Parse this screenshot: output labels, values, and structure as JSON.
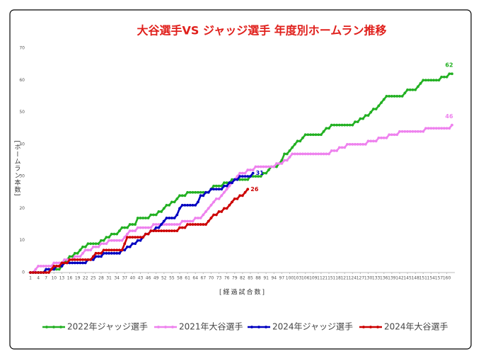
{
  "chart_data": {
    "type": "line",
    "title": "大谷選手VS ジャッジ選手 年度別ホームラン推移",
    "x_label": "[経過試合数]",
    "y_label": "[ホームラン本数]",
    "x": [
      1,
      2,
      3,
      4,
      5,
      6,
      7,
      8,
      9,
      10,
      11,
      12,
      13,
      14,
      15,
      16,
      17,
      18,
      19,
      20,
      21,
      22,
      23,
      24,
      25,
      26,
      27,
      28,
      29,
      30,
      31,
      32,
      33,
      34,
      35,
      36,
      37,
      38,
      39,
      40,
      41,
      42,
      43,
      44,
      45,
      46,
      47,
      48,
      49,
      50,
      51,
      52,
      53,
      54,
      55,
      56,
      57,
      58,
      59,
      60,
      61,
      62,
      63,
      64,
      65,
      66,
      67,
      68,
      69,
      70,
      71,
      72,
      73,
      74,
      75,
      76,
      77,
      78,
      79,
      80,
      81,
      82,
      83,
      84,
      85,
      86,
      87,
      88,
      89,
      90,
      91,
      92,
      93,
      94,
      95,
      96,
      97,
      98,
      99,
      100,
      101,
      102,
      103,
      104,
      105,
      106,
      107,
      108,
      109,
      110,
      111,
      112,
      113,
      114,
      115,
      116,
      117,
      118,
      119,
      120,
      121,
      122,
      123,
      124,
      125,
      126,
      127,
      128,
      129,
      130,
      131,
      132,
      133,
      134,
      135,
      136,
      137,
      138,
      139,
      140,
      141,
      142,
      143,
      144,
      145,
      146,
      147,
      148,
      149,
      150,
      151,
      152,
      153,
      154,
      155,
      156,
      157,
      158,
      159,
      160,
      161,
      162
    ],
    "series": [
      {
        "name": "2022年ジャッジ選手",
        "color": "#22b022",
        "values": [
          0,
          0,
          0,
          0,
          0,
          0,
          1,
          1,
          1,
          1,
          1,
          1,
          2,
          3,
          4,
          5,
          5,
          6,
          6,
          7,
          8,
          8,
          9,
          9,
          9,
          9,
          9,
          10,
          10,
          11,
          11,
          12,
          12,
          12,
          13,
          14,
          14,
          14,
          15,
          15,
          15,
          17,
          17,
          17,
          17,
          17,
          18,
          18,
          18,
          19,
          19,
          20,
          21,
          21,
          22,
          22,
          23,
          24,
          24,
          24,
          25,
          25,
          25,
          25,
          25,
          25,
          25,
          25,
          25,
          26,
          27,
          27,
          27,
          27,
          28,
          28,
          28,
          29,
          29,
          29,
          29,
          29,
          29,
          29,
          30,
          30,
          30,
          30,
          30,
          31,
          31,
          32,
          33,
          33,
          33,
          34,
          35,
          37,
          37,
          38,
          39,
          40,
          41,
          41,
          42,
          43,
          43,
          43,
          43,
          43,
          43,
          43,
          44,
          45,
          45,
          46,
          46,
          46,
          46,
          46,
          46,
          46,
          46,
          46,
          47,
          47,
          48,
          48,
          49,
          49,
          50,
          51,
          51,
          52,
          53,
          54,
          55,
          55,
          55,
          55,
          55,
          55,
          55,
          56,
          57,
          57,
          57,
          57,
          58,
          59,
          60,
          60,
          60,
          60,
          60,
          60,
          60,
          61,
          61,
          61,
          62,
          62
        ]
      },
      {
        "name": "2021年大谷選手",
        "color": "#ee82ee",
        "values": [
          0,
          0,
          1,
          2,
          2,
          2,
          2,
          2,
          2,
          3,
          3,
          3,
          3,
          4,
          4,
          4,
          4,
          5,
          5,
          5,
          6,
          7,
          7,
          7,
          8,
          8,
          8,
          9,
          9,
          9,
          10,
          10,
          10,
          10,
          10,
          10,
          11,
          12,
          13,
          13,
          13,
          14,
          14,
          14,
          14,
          14,
          14,
          15,
          15,
          15,
          15,
          15,
          15,
          15,
          15,
          15,
          15,
          15,
          16,
          16,
          16,
          16,
          16,
          17,
          17,
          17,
          18,
          19,
          20,
          21,
          22,
          23,
          23,
          24,
          25,
          26,
          27,
          28,
          29,
          30,
          31,
          31,
          31,
          32,
          32,
          32,
          33,
          33,
          33,
          33,
          33,
          33,
          33,
          33,
          34,
          34,
          34,
          35,
          35,
          36,
          37,
          37,
          37,
          37,
          37,
          37,
          37,
          37,
          37,
          37,
          37,
          37,
          37,
          37,
          37,
          38,
          38,
          38,
          39,
          39,
          39,
          40,
          40,
          40,
          40,
          40,
          40,
          40,
          40,
          41,
          41,
          41,
          41,
          42,
          42,
          42,
          42,
          43,
          43,
          43,
          43,
          44,
          44,
          44,
          44,
          44,
          44,
          44,
          44,
          44,
          44,
          45,
          45,
          45,
          45,
          45,
          45,
          45,
          45,
          45,
          45,
          46
        ]
      },
      {
        "name": "2024年ジャッジ選手",
        "color": "#0000c0",
        "values": [
          0,
          0,
          0,
          0,
          0,
          0,
          1,
          1,
          1,
          1,
          2,
          2,
          2,
          3,
          3,
          3,
          3,
          3,
          3,
          3,
          3,
          3,
          4,
          4,
          4,
          5,
          5,
          5,
          6,
          6,
          6,
          6,
          6,
          6,
          6,
          7,
          7,
          8,
          8,
          9,
          9,
          10,
          10,
          11,
          12,
          12,
          13,
          13,
          14,
          14,
          15,
          16,
          17,
          17,
          17,
          17,
          18,
          20,
          21,
          21,
          21,
          21,
          21,
          21,
          22,
          24,
          24,
          25,
          25,
          26,
          26,
          26,
          26,
          26,
          27,
          27,
          28,
          28,
          29,
          29,
          30,
          30,
          30,
          30,
          30,
          31,
          null,
          null,
          null,
          null,
          null,
          null,
          null,
          null,
          null,
          null,
          null,
          null,
          null,
          null,
          null,
          null,
          null,
          null,
          null,
          null,
          null,
          null,
          null,
          null,
          null,
          null,
          null,
          null,
          null,
          null,
          null,
          null,
          null,
          null,
          null,
          null,
          null,
          null,
          null,
          null,
          null,
          null,
          null,
          null,
          null,
          null,
          null,
          null,
          null,
          null,
          null,
          null,
          null,
          null,
          null,
          null,
          null,
          null,
          null,
          null,
          null,
          null,
          null,
          null,
          null,
          null,
          null,
          null,
          null,
          null,
          null,
          null,
          null,
          null,
          null,
          null
        ]
      },
      {
        "name": "2024年大谷選手",
        "color": "#cc0000",
        "values": [
          0,
          0,
          0,
          0,
          0,
          0,
          0,
          0,
          1,
          2,
          2,
          2,
          3,
          3,
          3,
          4,
          4,
          4,
          4,
          4,
          4,
          4,
          4,
          4,
          5,
          6,
          6,
          6,
          7,
          7,
          7,
          7,
          7,
          7,
          7,
          7,
          9,
          11,
          11,
          11,
          11,
          11,
          11,
          11,
          12,
          12,
          13,
          13,
          13,
          13,
          13,
          13,
          13,
          13,
          13,
          13,
          13,
          14,
          14,
          14,
          15,
          15,
          15,
          15,
          15,
          15,
          15,
          15,
          16,
          17,
          18,
          18,
          19,
          19,
          20,
          20,
          21,
          22,
          23,
          23,
          24,
          24,
          25,
          26,
          null,
          null,
          null,
          null,
          null,
          null,
          null,
          null,
          null,
          null,
          null,
          null,
          null,
          null,
          null,
          null,
          null,
          null,
          null,
          null,
          null,
          null,
          null,
          null,
          null,
          null,
          null,
          null,
          null,
          null,
          null,
          null,
          null,
          null,
          null,
          null,
          null,
          null,
          null,
          null,
          null,
          null,
          null,
          null,
          null,
          null,
          null,
          null,
          null,
          null,
          null,
          null,
          null,
          null,
          null,
          null,
          null,
          null,
          null,
          null,
          null,
          null,
          null,
          null,
          null,
          null,
          null,
          null,
          null,
          null,
          null,
          null,
          null,
          null,
          null,
          null,
          null,
          null
        ]
      }
    ],
    "xlim": [
      1,
      162
    ],
    "xticks": [
      1,
      4,
      7,
      10,
      13,
      16,
      19,
      22,
      25,
      28,
      31,
      34,
      37,
      40,
      43,
      46,
      49,
      52,
      55,
      58,
      61,
      64,
      67,
      70,
      73,
      76,
      79,
      82,
      85,
      88,
      91,
      94,
      97,
      100,
      103,
      106,
      109,
      112,
      115,
      118,
      121,
      124,
      127,
      130,
      133,
      136,
      139,
      142,
      145,
      148,
      151,
      154,
      157,
      160
    ],
    "ylim": [
      0,
      70
    ],
    "yticks": [
      0,
      10,
      20,
      30,
      40,
      50,
      60,
      70
    ],
    "grid": false,
    "legend": "bottom"
  }
}
